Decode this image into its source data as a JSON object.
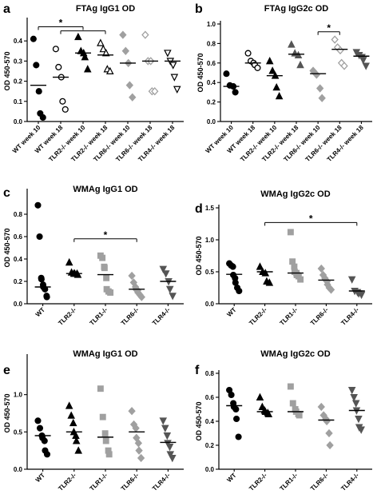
{
  "chart_data": [
    {
      "type": "scatter",
      "panel": "a",
      "title": "FTAg IgG1 OD",
      "ylabel": "OD 450-570",
      "ylim": [
        0,
        0.5
      ],
      "yticks": [
        0.0,
        0.1,
        0.2,
        0.3,
        0.4
      ],
      "categories": [
        "WT week 10",
        "WT week 18",
        "TLR2-/- week 10",
        "TLR2-/- week 18",
        "TLR6-/- week 10",
        "TLR6-/- week 18",
        "TLR4-/- week 18"
      ],
      "category_styles": [
        {
          "shape": "circle",
          "fill": "#000000",
          "stroke": "#000000"
        },
        {
          "shape": "circle",
          "fill": "#ffffff",
          "stroke": "#000000"
        },
        {
          "shape": "triangle",
          "fill": "#000000",
          "stroke": "#000000"
        },
        {
          "shape": "triangle",
          "fill": "#ffffff",
          "stroke": "#000000"
        },
        {
          "shape": "diamond",
          "fill": "#a0a0a0",
          "stroke": "#a0a0a0"
        },
        {
          "shape": "diamond",
          "fill": "#ffffff",
          "stroke": "#a0a0a0"
        },
        {
          "shape": "invtriangle",
          "fill": "#ffffff",
          "stroke": "#000000"
        }
      ],
      "points": [
        [
          0.41,
          0.28,
          0.15,
          0.04,
          0.02
        ],
        [
          0.36,
          0.27,
          0.22,
          0.1,
          0.06
        ],
        [
          0.42,
          0.35,
          0.34,
          0.32,
          0.26
        ],
        [
          0.39,
          0.36,
          0.34,
          0.26,
          0.25
        ],
        [
          0.43,
          0.35,
          0.29,
          0.18,
          0.12
        ],
        [
          0.43,
          0.3,
          0.3,
          0.15,
          0.15
        ],
        [
          0.34,
          0.3,
          0.28,
          0.22,
          0.16
        ]
      ],
      "means": [
        0.18,
        0.22,
        0.34,
        0.33,
        0.29,
        0.3,
        0.3
      ],
      "sig_brackets": [
        {
          "label": "*",
          "from": 0,
          "to": 2,
          "y": 0.47
        },
        {
          "label": "",
          "from": 1,
          "to": 3,
          "y": 0.45
        }
      ]
    },
    {
      "type": "scatter",
      "panel": "b",
      "title": "FTAg IgG2c OD",
      "ylabel": "OD 450-570",
      "ylim": [
        0,
        1.0
      ],
      "yticks": [
        0.0,
        0.2,
        0.4,
        0.6,
        0.8,
        1.0
      ],
      "categories": [
        "WT week 10",
        "WT week 18",
        "TLR2-/- week 10",
        "TLR2-/- week 18",
        "TLR6-/- week 10",
        "TLR6-/- week 18",
        "TLR4-/- week 18"
      ],
      "category_styles": [
        {
          "shape": "circle",
          "fill": "#000000",
          "stroke": "#000000"
        },
        {
          "shape": "circle",
          "fill": "#ffffff",
          "stroke": "#000000"
        },
        {
          "shape": "triangle",
          "fill": "#000000",
          "stroke": "#000000"
        },
        {
          "shape": "triangle",
          "fill": "#555555",
          "stroke": "#555555"
        },
        {
          "shape": "diamond",
          "fill": "#a0a0a0",
          "stroke": "#a0a0a0"
        },
        {
          "shape": "diamond",
          "fill": "#ffffff",
          "stroke": "#a0a0a0"
        },
        {
          "shape": "invtriangle",
          "fill": "#555555",
          "stroke": "#555555"
        }
      ],
      "points": [
        [
          0.49,
          0.37,
          0.36,
          0.3
        ],
        [
          0.7,
          0.62,
          0.6,
          0.58,
          0.55
        ],
        [
          0.62,
          0.52,
          0.47,
          0.35,
          0.26
        ],
        [
          0.79,
          0.7,
          0.68,
          0.58
        ],
        [
          0.52,
          0.48,
          0.34,
          0.24
        ],
        [
          0.84,
          0.76,
          0.73,
          0.6,
          0.57
        ],
        [
          0.71,
          0.68,
          0.66,
          0.63,
          0.57
        ]
      ],
      "means": [
        0.36,
        0.6,
        0.47,
        0.69,
        0.49,
        0.74,
        0.67
      ],
      "sig_brackets": [
        {
          "label": "*",
          "from": 4,
          "to": 5,
          "y": 0.92
        }
      ]
    },
    {
      "type": "scatter",
      "panel": "c",
      "title": "WMAg IgG1 OD",
      "ylabel": "OD 450-570",
      "ylim": [
        0,
        1.0
      ],
      "yticks": [
        0.0,
        0.2,
        0.4,
        0.6,
        0.8
      ],
      "categories": [
        "WT",
        "TLR2-/-",
        "TLR1-/-",
        "TLR6-/-",
        "TLR4-/-"
      ],
      "category_styles": [
        {
          "shape": "circle",
          "fill": "#000000",
          "stroke": "#000000"
        },
        {
          "shape": "triangle",
          "fill": "#000000",
          "stroke": "#000000"
        },
        {
          "shape": "square",
          "fill": "#a0a0a0",
          "stroke": "#a0a0a0"
        },
        {
          "shape": "diamond",
          "fill": "#a0a0a0",
          "stroke": "#a0a0a0"
        },
        {
          "shape": "invtriangle",
          "fill": "#555555",
          "stroke": "#555555"
        }
      ],
      "points": [
        [
          0.88,
          0.6,
          0.23,
          0.22,
          0.17,
          0.15,
          0.13,
          0.07,
          0.06
        ],
        [
          0.37,
          0.28,
          0.27,
          0.27,
          0.27,
          0.26
        ],
        [
          0.43,
          0.41,
          0.33,
          0.32,
          0.23,
          0.13,
          0.11,
          0.1
        ],
        [
          0.25,
          0.19,
          0.15,
          0.13,
          0.12,
          0.1,
          0.08,
          0.06
        ],
        [
          0.31,
          0.27,
          0.2,
          0.13,
          0.07
        ]
      ],
      "means": [
        0.15,
        0.27,
        0.26,
        0.13,
        0.2
      ],
      "sig_brackets": [
        {
          "label": "*",
          "from": 1,
          "to": 3,
          "y": 0.58
        }
      ]
    },
    {
      "type": "scatter",
      "panel": "d",
      "title": "WMAg IgG2c OD",
      "ylabel": "OD 450-570",
      "ylim": [
        0,
        1.5
      ],
      "yticks": [
        0.0,
        0.5,
        1.0,
        1.5
      ],
      "categories": [
        "WT",
        "TLR2-/-",
        "TLR1-/-",
        "TLR6-/-",
        "TLR4-/-"
      ],
      "category_styles": [
        {
          "shape": "circle",
          "fill": "#000000",
          "stroke": "#000000"
        },
        {
          "shape": "triangle",
          "fill": "#000000",
          "stroke": "#000000"
        },
        {
          "shape": "square",
          "fill": "#a0a0a0",
          "stroke": "#a0a0a0"
        },
        {
          "shape": "diamond",
          "fill": "#a0a0a0",
          "stroke": "#a0a0a0"
        },
        {
          "shape": "invtriangle",
          "fill": "#555555",
          "stroke": "#555555"
        }
      ],
      "points": [
        [
          0.63,
          0.6,
          0.58,
          0.45,
          0.4,
          0.33,
          0.25,
          0.2
        ],
        [
          0.58,
          0.5,
          0.48,
          0.35,
          0.33
        ],
        [
          1.12,
          0.66,
          0.58,
          0.5,
          0.48,
          0.45,
          0.43,
          0.38
        ],
        [
          0.55,
          0.45,
          0.4,
          0.38,
          0.35,
          0.3,
          0.25,
          0.22
        ],
        [
          0.38,
          0.2,
          0.18,
          0.16,
          0.14
        ]
      ],
      "means": [
        0.46,
        0.5,
        0.48,
        0.37,
        0.2
      ],
      "sig_brackets": [
        {
          "label": "*",
          "from": 1,
          "to": 4,
          "y": 1.27
        }
      ]
    },
    {
      "type": "scatter",
      "panel": "e",
      "title": "WMAg IgG1 OD",
      "ylabel": "OD 450-570",
      "ylim": [
        0,
        1.5
      ],
      "yticks": [
        0.0,
        0.5,
        1.0
      ],
      "categories": [
        "WT",
        "TLR2-/-",
        "TLR1-/-",
        "TLR6-/-",
        "TLR4-/-"
      ],
      "category_styles": [
        {
          "shape": "circle",
          "fill": "#000000",
          "stroke": "#000000"
        },
        {
          "shape": "triangle",
          "fill": "#000000",
          "stroke": "#000000"
        },
        {
          "shape": "square",
          "fill": "#a0a0a0",
          "stroke": "#a0a0a0"
        },
        {
          "shape": "diamond",
          "fill": "#a0a0a0",
          "stroke": "#a0a0a0"
        },
        {
          "shape": "invtriangle",
          "fill": "#555555",
          "stroke": "#555555"
        }
      ],
      "points": [
        [
          0.65,
          0.55,
          0.45,
          0.42,
          0.38,
          0.25,
          0.2
        ],
        [
          0.85,
          0.72,
          0.62,
          0.5,
          0.45,
          0.38,
          0.25
        ],
        [
          1.08,
          0.7,
          0.48,
          0.38,
          0.25,
          0.2
        ],
        [
          0.78,
          0.6,
          0.55,
          0.42,
          0.35,
          0.25,
          0.15
        ],
        [
          0.65,
          0.55,
          0.45,
          0.35,
          0.3,
          0.2,
          0.15
        ]
      ],
      "means": [
        0.45,
        0.5,
        0.43,
        0.5,
        0.36
      ],
      "sig_brackets": []
    },
    {
      "type": "scatter",
      "panel": "f",
      "title": "WMAg IgG2c OD",
      "ylabel": "OD 450-570",
      "ylim": [
        0,
        0.8
      ],
      "yticks": [
        0.0,
        0.2,
        0.4,
        0.6,
        0.8
      ],
      "categories": [
        "WT",
        "TLR2-/-",
        "TLR1-/-",
        "TLR6-/-",
        "TLR4-/-"
      ],
      "category_styles": [
        {
          "shape": "circle",
          "fill": "#000000",
          "stroke": "#000000"
        },
        {
          "shape": "triangle",
          "fill": "#000000",
          "stroke": "#000000"
        },
        {
          "shape": "square",
          "fill": "#a0a0a0",
          "stroke": "#a0a0a0"
        },
        {
          "shape": "diamond",
          "fill": "#a0a0a0",
          "stroke": "#a0a0a0"
        },
        {
          "shape": "invtriangle",
          "fill": "#555555",
          "stroke": "#555555"
        }
      ],
      "points": [
        [
          0.66,
          0.62,
          0.55,
          0.52,
          0.5,
          0.42,
          0.27
        ],
        [
          0.6,
          0.52,
          0.49,
          0.48,
          0.47,
          0.46
        ],
        [
          0.69,
          0.55,
          0.5,
          0.48,
          0.46,
          0.45
        ],
        [
          0.52,
          0.45,
          0.42,
          0.4,
          0.3,
          0.2
        ],
        [
          0.66,
          0.6,
          0.55,
          0.49,
          0.42,
          0.35,
          0.33
        ]
      ],
      "means": [
        0.53,
        0.48,
        0.48,
        0.41,
        0.49
      ],
      "sig_brackets": []
    }
  ]
}
